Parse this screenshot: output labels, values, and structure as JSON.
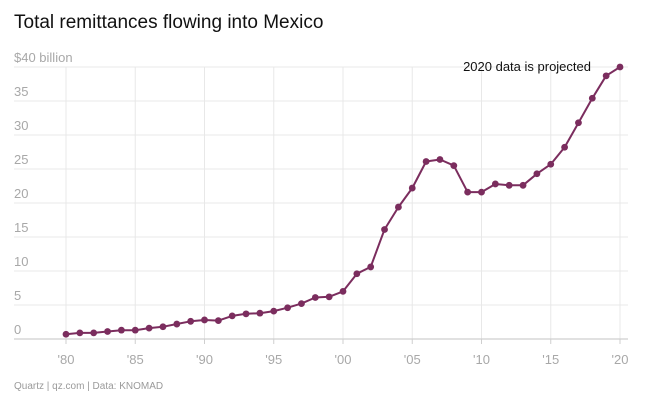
{
  "title": "Total remittances flowing into Mexico",
  "footer": "Quartz | qz.com | Data: KNOMAD",
  "colors": {
    "series": "#7b2d5e",
    "grid": "#e8e8e8",
    "axis": "#cfcfcf"
  },
  "chart_data": {
    "type": "line",
    "title": "Total remittances flowing into Mexico",
    "xlabel": "",
    "ylabel": "",
    "xlim": [
      1978.5,
      2020.6
    ],
    "ylim": [
      0,
      40
    ],
    "y_ticks": [
      0,
      5,
      10,
      15,
      20,
      25,
      30,
      35,
      40
    ],
    "y_tick_labels": [
      "0",
      "5",
      "10",
      "15",
      "20",
      "25",
      "30",
      "35",
      "$40 billion"
    ],
    "x_ticks": [
      1980,
      1985,
      1990,
      1995,
      2000,
      2005,
      2010,
      2015,
      2020
    ],
    "x_tick_labels": [
      "'80",
      "'85",
      "'90",
      "'95",
      "'00",
      "'05",
      "'10",
      "'15",
      "'20"
    ],
    "annotation": "2020 data is projected",
    "series": [
      {
        "name": "Remittances ($ billion)",
        "x": [
          1980,
          1981,
          1982,
          1983,
          1984,
          1985,
          1986,
          1987,
          1988,
          1989,
          1990,
          1991,
          1992,
          1993,
          1994,
          1995,
          1996,
          1997,
          1998,
          1999,
          2000,
          2001,
          2002,
          2003,
          2004,
          2005,
          2006,
          2007,
          2008,
          2009,
          2010,
          2011,
          2012,
          2013,
          2014,
          2015,
          2016,
          2017,
          2018,
          2019,
          2020
        ],
        "values": [
          0.7,
          0.9,
          0.9,
          1.1,
          1.3,
          1.3,
          1.6,
          1.8,
          2.2,
          2.6,
          2.8,
          2.7,
          3.4,
          3.7,
          3.8,
          4.1,
          4.6,
          5.2,
          6.1,
          6.2,
          7.0,
          9.6,
          10.6,
          16.1,
          19.4,
          22.2,
          26.1,
          26.4,
          25.5,
          21.6,
          21.6,
          22.8,
          22.6,
          22.6,
          24.3,
          25.7,
          28.2,
          31.8,
          35.4,
          38.7,
          40.0
        ]
      }
    ]
  }
}
